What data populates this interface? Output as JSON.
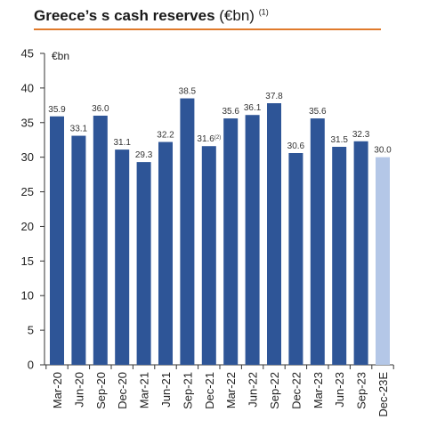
{
  "title": {
    "main": "Greece’s s cash reserves",
    "unit": " (€bn) ",
    "note": "(1)"
  },
  "chart_data": {
    "type": "bar",
    "title": "Greece’s s cash reserves (€bn) (1)",
    "unit_label": "€bn",
    "categories": [
      "Mar-20",
      "Jun-20",
      "Sep-20",
      "Dec-20",
      "Mar-21",
      "Jun-21",
      "Sep-21",
      "Dec-21",
      "Mar-22",
      "Jun-22",
      "Sep-22",
      "Dec-22",
      "Mar-23",
      "Jun-23",
      "Sep-23",
      "Dec-23E"
    ],
    "values": [
      35.9,
      33.1,
      36.0,
      31.1,
      29.3,
      32.2,
      38.5,
      31.6,
      35.6,
      36.1,
      37.8,
      30.6,
      35.6,
      31.5,
      32.3,
      30.0
    ],
    "value_labels": [
      "35.9",
      "33.1",
      "36.0",
      "31.1",
      "29.3",
      "32.2",
      "38.5",
      "31.6",
      "35.6",
      "36.1",
      "37.8",
      "30.6",
      "35.6",
      "31.5",
      "32.3",
      "30.0"
    ],
    "label_notes": [
      "",
      "",
      "",
      "",
      "",
      "",
      "",
      "(2)",
      "",
      "",
      "",
      "",
      "",
      "",
      "",
      ""
    ],
    "estimate": [
      false,
      false,
      false,
      false,
      false,
      false,
      false,
      false,
      false,
      false,
      false,
      false,
      false,
      false,
      false,
      true
    ],
    "ylim": [
      0,
      45
    ],
    "yticks": [
      0,
      5,
      10,
      15,
      20,
      25,
      30,
      35,
      40,
      45
    ],
    "colors": {
      "actual": "#2e5597",
      "estimate": "#b4c7e7",
      "axis": "#333333"
    },
    "grid": false,
    "legend": "none"
  }
}
